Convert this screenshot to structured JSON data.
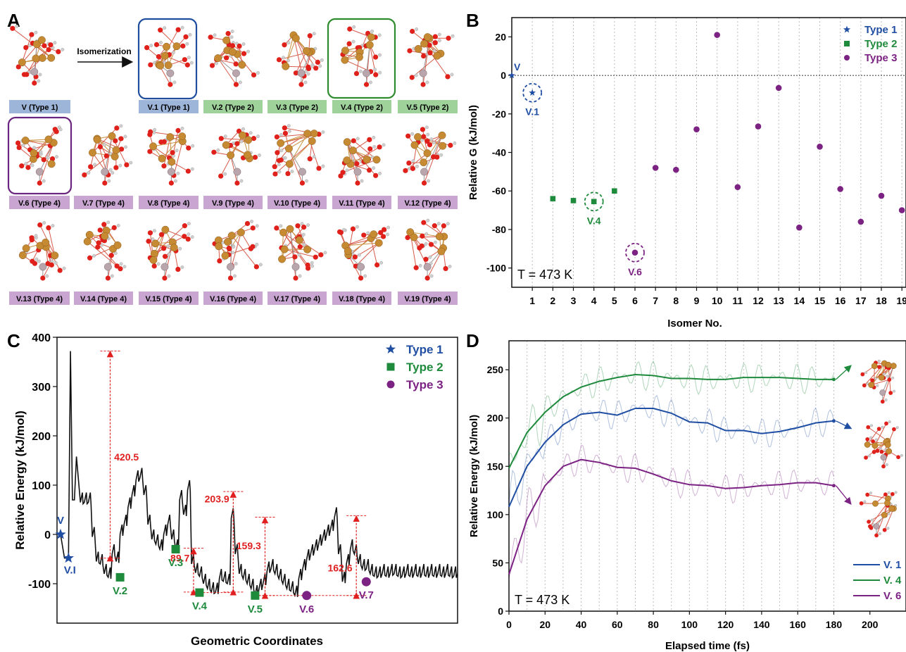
{
  "panels": {
    "a": {
      "letter": "A",
      "arrow_label": "Isomerization",
      "labels": {
        "v": "V (Type 1)",
        "v1": "V.1 (Type 1)",
        "v2": "V.2 (Type 2)",
        "v3": "V.3 (Type 2)",
        "v4": "V.4 (Type 2)",
        "v5": "V.5 (Type 2)",
        "v6": "V.6 (Type 4)",
        "v7": "V.7 (Type 4)",
        "v8": "V.8 (Type 4)",
        "v9": "V.9 (Type 4)",
        "v10": "V.10 (Type 4)",
        "v11": "V.11 (Type 4)",
        "v12": "V.12 (Type 4)",
        "v13": "V.13 (Type 4)",
        "v14": "V.14 (Type 4)",
        "v15": "V.15 (Type 4)",
        "v16": "V.16 (Type 4)",
        "v17": "V.17 (Type 4)",
        "v18": "V.18 (Type 4)",
        "v19": "V.19 (Type 4)"
      },
      "label_colors": {
        "type1": "#9db5d9",
        "type2": "#9fd19b",
        "type4": "#c9a6d2"
      },
      "highlight_colors": {
        "v1": "#1f4e9e",
        "v4": "#2e8b2e",
        "v6": "#6b2580"
      }
    },
    "b": {
      "letter": "B"
    },
    "c": {
      "letter": "C"
    },
    "d": {
      "letter": "D"
    }
  },
  "colors": {
    "type1": "#1f4ea3",
    "type2": "#1e8a3c",
    "type3": "#7b2283",
    "red": "#e02020"
  },
  "chart_data": [
    {
      "type": "scatter",
      "xlabel": "Isomer No.",
      "ylabel": "Relative G (kJ/mol)",
      "xlim": [
        0,
        19
      ],
      "ylim": [
        -110,
        30
      ],
      "x_ticks": [
        1,
        2,
        3,
        4,
        5,
        6,
        7,
        8,
        9,
        10,
        11,
        12,
        13,
        14,
        15,
        16,
        17,
        18,
        19
      ],
      "y_ticks": [
        20,
        0,
        -20,
        -40,
        -60,
        -80,
        -100
      ],
      "annotation": "T = 473 K",
      "grid": "vertical dotted",
      "legend_position": "top-right",
      "zero_line": "dotted",
      "series": [
        {
          "name": "Type 1",
          "marker": "star",
          "points": [
            [
              0,
              0
            ],
            [
              1,
              -9
            ]
          ]
        },
        {
          "name": "Type 2",
          "marker": "square",
          "points": [
            [
              2,
              -64
            ],
            [
              3,
              -65
            ],
            [
              4,
              -65.5
            ],
            [
              5,
              -60
            ]
          ]
        },
        {
          "name": "Type 3",
          "marker": "circle",
          "points": [
            [
              6,
              -92
            ],
            [
              7,
              -48
            ],
            [
              8,
              -49
            ],
            [
              9,
              -28
            ],
            [
              10,
              21
            ],
            [
              11,
              -58
            ],
            [
              12,
              -26.5
            ],
            [
              13,
              -6.5
            ],
            [
              14,
              -79
            ],
            [
              15,
              -37
            ],
            [
              16,
              -59
            ],
            [
              17,
              -76
            ],
            [
              18,
              -62.5
            ],
            [
              19,
              -70
            ]
          ]
        }
      ],
      "point_labels": [
        {
          "text": "V",
          "x": 0,
          "y": 0,
          "series": "Type 1"
        },
        {
          "text": "V.1",
          "x": 1,
          "y": -9,
          "series": "Type 1"
        },
        {
          "text": "V.4",
          "x": 4,
          "y": -65.5,
          "series": "Type 2"
        },
        {
          "text": "V.6",
          "x": 6,
          "y": -92,
          "series": "Type 3"
        }
      ]
    },
    {
      "type": "line",
      "xlabel": "Geometric Coordinates",
      "ylabel": "Relative Energy (kJ/mol)",
      "ylim": [
        -180,
        400
      ],
      "y_ticks": [
        400,
        300,
        200,
        100,
        0,
        -100
      ],
      "legend_position": "top-right",
      "legend": [
        "Type 1",
        "Type 2",
        "Type 3"
      ],
      "profile_x": [
        0,
        1,
        2,
        2.5,
        3,
        3.5,
        4,
        5,
        6,
        7,
        8,
        9,
        10,
        11,
        12,
        13,
        14,
        15,
        16,
        17,
        18,
        19,
        20,
        21,
        22,
        23,
        24,
        25,
        26,
        27,
        28,
        29,
        30,
        31,
        32,
        33,
        34,
        35,
        36,
        37,
        38,
        39,
        40,
        41,
        42,
        43,
        44,
        45,
        46,
        47,
        48,
        49,
        50,
        51,
        52,
        53,
        54,
        55,
        56,
        57,
        58,
        59,
        60,
        61,
        62,
        63,
        64,
        65,
        66,
        67,
        68,
        69,
        70,
        71,
        72,
        73,
        74,
        75,
        76,
        77,
        78,
        79,
        80,
        81,
        82,
        83,
        84,
        85,
        86,
        87,
        88,
        89,
        90,
        91,
        92,
        93,
        94,
        95,
        96,
        97,
        98,
        99,
        100
      ],
      "profile_y": [
        0,
        -48,
        -48,
        372,
        70,
        70,
        158,
        65,
        65,
        65,
        -5,
        -55,
        -60,
        -80,
        -87,
        -40,
        -55,
        0,
        20,
        55,
        80,
        110,
        115,
        80,
        20,
        -10,
        -20,
        -30,
        0,
        20,
        -10,
        -30,
        70,
        40,
        90,
        -60,
        -78,
        -85,
        -100,
        -110,
        -117,
        -118,
        -90,
        -95,
        -100,
        33,
        -40,
        -80,
        -90,
        -100,
        -110,
        -123,
        -110,
        -100,
        -75,
        -70,
        -80,
        -90,
        -100,
        -110,
        -115,
        -124,
        -90,
        -70,
        -50,
        -40,
        -30,
        -20,
        -10,
        0,
        10,
        35,
        -40,
        -96,
        -60,
        -30,
        -40,
        -60,
        -70,
        -70,
        -80,
        -85,
        -85,
        -80,
        -85,
        -80,
        -80,
        -85,
        -85,
        -80,
        -85,
        -80,
        -85,
        -80,
        -85,
        -80,
        -85,
        -80,
        -85,
        -80,
        -85,
        -85,
        -80
      ],
      "series": [
        {
          "name": "Type 1",
          "marker": "star",
          "points": [
            [
              0,
              0
            ],
            [
              2,
              -48
            ]
          ]
        },
        {
          "name": "Type 2",
          "marker": "square",
          "points": [
            [
              15,
              -87
            ],
            [
              29,
              -30
            ],
            [
              35,
              -118
            ],
            [
              49,
              -124
            ]
          ]
        },
        {
          "name": "Type 3",
          "marker": "circle",
          "points": [
            [
              62,
              -124
            ],
            [
              77,
              -96
            ]
          ]
        }
      ],
      "point_labels": [
        {
          "text": "V",
          "series": "Type 1"
        },
        {
          "text": "V.I",
          "series": "Type 1"
        },
        {
          "text": "V.2",
          "series": "Type 2"
        },
        {
          "text": "V.3",
          "series": "Type 2"
        },
        {
          "text": "V.4",
          "series": "Type 2"
        },
        {
          "text": "V.5",
          "series": "Type 2"
        },
        {
          "text": "V.6",
          "series": "Type 3"
        },
        {
          "text": "V.7",
          "series": "Type 3"
        }
      ],
      "barriers": [
        {
          "label": "420.5",
          "from": -48,
          "to": 372
        },
        {
          "label": "89.7",
          "from": -117,
          "to": -28
        },
        {
          "label": "203.9",
          "from": -117,
          "to": 87
        },
        {
          "label": "159.3",
          "from": -124,
          "to": 35
        },
        {
          "label": "162.6",
          "from": -124,
          "to": 38
        }
      ]
    },
    {
      "type": "line",
      "xlabel": "Elapsed time (fs)",
      "ylabel": "Relative Energy (kJ/mol)",
      "xlim": [
        0,
        220
      ],
      "ylim": [
        0,
        280
      ],
      "x_ticks": [
        0,
        20,
        40,
        60,
        80,
        100,
        120,
        140,
        160,
        180,
        200
      ],
      "y_ticks": [
        0,
        50,
        100,
        150,
        200,
        250
      ],
      "annotation": "T = 473 K",
      "grid": "vertical dotted",
      "legend_position": "bottom-right",
      "series": [
        {
          "name": "V. 1",
          "x": [
            0,
            10,
            20,
            30,
            40,
            50,
            60,
            70,
            80,
            90,
            100,
            110,
            120,
            130,
            140,
            150,
            160,
            170,
            180
          ],
          "values": [
            108,
            150,
            175,
            193,
            204,
            206,
            203,
            210,
            210,
            205,
            196,
            195,
            187,
            187,
            184,
            186,
            190,
            195,
            197
          ]
        },
        {
          "name": "V. 4",
          "x": [
            0,
            10,
            20,
            30,
            40,
            50,
            60,
            70,
            80,
            90,
            100,
            110,
            120,
            130,
            140,
            150,
            160,
            170,
            180
          ],
          "values": [
            148,
            185,
            206,
            222,
            232,
            238,
            242,
            245,
            244,
            241,
            241,
            240,
            240,
            242,
            242,
            242,
            241,
            240,
            240
          ]
        },
        {
          "name": "V. 6",
          "x": [
            0,
            10,
            20,
            30,
            40,
            50,
            60,
            70,
            80,
            90,
            100,
            110,
            120,
            130,
            140,
            150,
            160,
            170,
            180
          ],
          "values": [
            38,
            95,
            130,
            150,
            157,
            154,
            149,
            148,
            142,
            135,
            131,
            130,
            127,
            128,
            130,
            131,
            133,
            133,
            130
          ]
        }
      ]
    }
  ]
}
